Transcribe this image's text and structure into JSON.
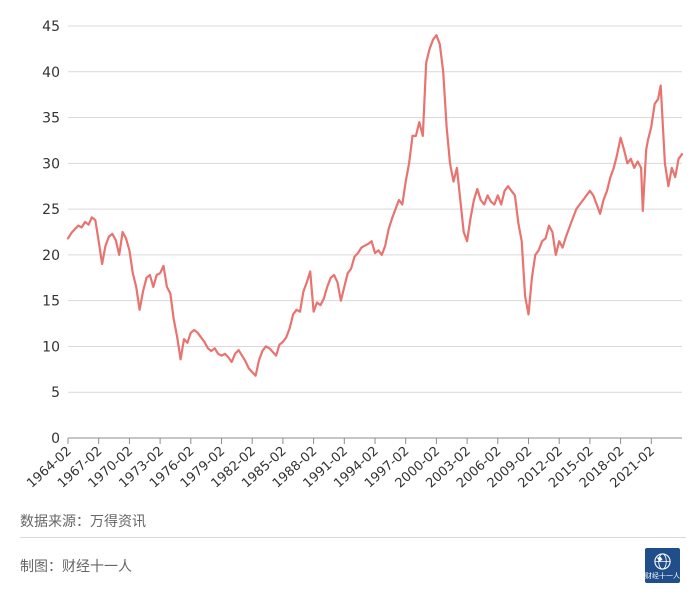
{
  "chart_data": {
    "type": "line",
    "title": "",
    "xlabel": "",
    "ylabel": "",
    "ylim": [
      0,
      45
    ],
    "y_ticks": [
      "0",
      "5",
      "10",
      "15",
      "20",
      "25",
      "30",
      "35",
      "40",
      "45"
    ],
    "x_tick_labels": [
      "1964-02",
      "1967-02",
      "1970-02",
      "1973-02",
      "1976-02",
      "1979-02",
      "1982-02",
      "1985-02",
      "1988-02",
      "1991-02",
      "1994-02",
      "1997-02",
      "2000-02",
      "2003-02",
      "2006-02",
      "2009-02",
      "2012-02",
      "2015-02",
      "2018-02",
      "2021-02"
    ],
    "xlim": [
      "1964-02",
      "2024-02"
    ],
    "grid": true,
    "legend": "none",
    "series": [
      {
        "color": "#e8736f",
        "points": [
          [
            "1964-02",
            21.8
          ],
          [
            "1964-06",
            22.4
          ],
          [
            "1964-10",
            22.8
          ],
          [
            "1965-02",
            23.2
          ],
          [
            "1965-06",
            23.0
          ],
          [
            "1965-10",
            23.6
          ],
          [
            "1966-02",
            23.3
          ],
          [
            "1966-06",
            24.1
          ],
          [
            "1966-10",
            23.8
          ],
          [
            "1967-02",
            21.5
          ],
          [
            "1967-06",
            19.0
          ],
          [
            "1967-10",
            21.0
          ],
          [
            "1968-02",
            22.0
          ],
          [
            "1968-06",
            22.3
          ],
          [
            "1968-10",
            21.6
          ],
          [
            "1969-02",
            20.0
          ],
          [
            "1969-06",
            22.5
          ],
          [
            "1969-10",
            21.8
          ],
          [
            "1970-02",
            20.5
          ],
          [
            "1970-06",
            18.0
          ],
          [
            "1970-10",
            16.5
          ],
          [
            "1971-02",
            14.0
          ],
          [
            "1971-06",
            16.0
          ],
          [
            "1971-10",
            17.5
          ],
          [
            "1972-02",
            17.8
          ],
          [
            "1972-06",
            16.5
          ],
          [
            "1972-10",
            17.8
          ],
          [
            "1973-02",
            18.0
          ],
          [
            "1973-06",
            18.8
          ],
          [
            "1973-10",
            16.5
          ],
          [
            "1974-02",
            15.8
          ],
          [
            "1974-06",
            13.0
          ],
          [
            "1974-10",
            11.0
          ],
          [
            "1975-02",
            8.6
          ],
          [
            "1975-06",
            10.8
          ],
          [
            "1975-10",
            10.4
          ],
          [
            "1976-02",
            11.5
          ],
          [
            "1976-06",
            11.8
          ],
          [
            "1976-10",
            11.5
          ],
          [
            "1977-02",
            11.0
          ],
          [
            "1977-06",
            10.5
          ],
          [
            "1977-10",
            9.8
          ],
          [
            "1978-02",
            9.5
          ],
          [
            "1978-06",
            9.8
          ],
          [
            "1978-10",
            9.2
          ],
          [
            "1979-02",
            9.0
          ],
          [
            "1979-06",
            9.2
          ],
          [
            "1979-10",
            8.8
          ],
          [
            "1980-02",
            8.3
          ],
          [
            "1980-06",
            9.2
          ],
          [
            "1980-10",
            9.6
          ],
          [
            "1981-02",
            9.0
          ],
          [
            "1981-06",
            8.4
          ],
          [
            "1981-10",
            7.6
          ],
          [
            "1982-02",
            7.2
          ],
          [
            "1982-06",
            6.8
          ],
          [
            "1982-10",
            8.5
          ],
          [
            "1983-02",
            9.5
          ],
          [
            "1983-06",
            10.0
          ],
          [
            "1983-10",
            9.8
          ],
          [
            "1984-02",
            9.4
          ],
          [
            "1984-06",
            9.0
          ],
          [
            "1984-10",
            10.2
          ],
          [
            "1985-02",
            10.5
          ],
          [
            "1985-06",
            11.0
          ],
          [
            "1985-10",
            12.0
          ],
          [
            "1986-02",
            13.5
          ],
          [
            "1986-06",
            14.0
          ],
          [
            "1986-10",
            13.8
          ],
          [
            "1987-02",
            16.0
          ],
          [
            "1987-06",
            17.0
          ],
          [
            "1987-10",
            18.2
          ],
          [
            "1988-02",
            13.8
          ],
          [
            "1988-06",
            14.8
          ],
          [
            "1988-10",
            14.5
          ],
          [
            "1989-02",
            15.2
          ],
          [
            "1989-06",
            16.5
          ],
          [
            "1989-10",
            17.5
          ],
          [
            "1990-02",
            17.8
          ],
          [
            "1990-06",
            17.0
          ],
          [
            "1990-10",
            15.0
          ],
          [
            "1991-02",
            16.5
          ],
          [
            "1991-06",
            18.0
          ],
          [
            "1991-10",
            18.5
          ],
          [
            "1992-02",
            19.8
          ],
          [
            "1992-06",
            20.2
          ],
          [
            "1992-10",
            20.8
          ],
          [
            "1993-02",
            21.0
          ],
          [
            "1993-06",
            21.2
          ],
          [
            "1993-10",
            21.5
          ],
          [
            "1994-02",
            20.2
          ],
          [
            "1994-06",
            20.5
          ],
          [
            "1994-10",
            20.0
          ],
          [
            "1995-02",
            21.0
          ],
          [
            "1995-06",
            22.8
          ],
          [
            "1995-10",
            24.0
          ],
          [
            "1996-02",
            25.0
          ],
          [
            "1996-06",
            26.0
          ],
          [
            "1996-10",
            25.5
          ],
          [
            "1997-02",
            28.0
          ],
          [
            "1997-06",
            30.0
          ],
          [
            "1997-10",
            33.0
          ],
          [
            "1998-02",
            33.0
          ],
          [
            "1998-06",
            34.5
          ],
          [
            "1998-10",
            33.0
          ],
          [
            "1999-02",
            41.0
          ],
          [
            "1999-06",
            42.5
          ],
          [
            "1999-10",
            43.5
          ],
          [
            "2000-02",
            44.0
          ],
          [
            "2000-06",
            43.0
          ],
          [
            "2000-10",
            40.0
          ],
          [
            "2001-02",
            34.0
          ],
          [
            "2001-06",
            30.0
          ],
          [
            "2001-10",
            28.0
          ],
          [
            "2002-02",
            29.5
          ],
          [
            "2002-06",
            26.0
          ],
          [
            "2002-10",
            22.5
          ],
          [
            "2003-02",
            21.5
          ],
          [
            "2003-06",
            24.0
          ],
          [
            "2003-10",
            26.0
          ],
          [
            "2004-02",
            27.2
          ],
          [
            "2004-06",
            26.0
          ],
          [
            "2004-10",
            25.5
          ],
          [
            "2005-02",
            26.5
          ],
          [
            "2005-06",
            25.8
          ],
          [
            "2005-10",
            25.5
          ],
          [
            "2006-02",
            26.5
          ],
          [
            "2006-06",
            25.5
          ],
          [
            "2006-10",
            27.0
          ],
          [
            "2007-02",
            27.5
          ],
          [
            "2007-06",
            27.0
          ],
          [
            "2007-10",
            26.5
          ],
          [
            "2008-02",
            23.5
          ],
          [
            "2008-06",
            21.5
          ],
          [
            "2008-10",
            15.5
          ],
          [
            "2009-02",
            13.5
          ],
          [
            "2009-06",
            17.5
          ],
          [
            "2009-10",
            20.0
          ],
          [
            "2010-02",
            20.5
          ],
          [
            "2010-06",
            21.5
          ],
          [
            "2010-10",
            21.8
          ],
          [
            "2011-02",
            23.2
          ],
          [
            "2011-06",
            22.5
          ],
          [
            "2011-10",
            20.0
          ],
          [
            "2012-02",
            21.5
          ],
          [
            "2012-06",
            20.8
          ],
          [
            "2012-10",
            22.0
          ],
          [
            "2013-02",
            23.0
          ],
          [
            "2013-06",
            24.0
          ],
          [
            "2013-10",
            25.0
          ],
          [
            "2014-02",
            25.5
          ],
          [
            "2014-06",
            26.0
          ],
          [
            "2014-10",
            26.5
          ],
          [
            "2015-02",
            27.0
          ],
          [
            "2015-06",
            26.5
          ],
          [
            "2015-10",
            25.5
          ],
          [
            "2016-02",
            24.5
          ],
          [
            "2016-06",
            26.0
          ],
          [
            "2016-10",
            27.0
          ],
          [
            "2017-02",
            28.5
          ],
          [
            "2017-06",
            29.5
          ],
          [
            "2017-10",
            31.0
          ],
          [
            "2018-02",
            32.8
          ],
          [
            "2018-06",
            31.5
          ],
          [
            "2018-10",
            30.0
          ],
          [
            "2019-02",
            30.5
          ],
          [
            "2019-06",
            29.5
          ],
          [
            "2019-10",
            30.2
          ],
          [
            "2020-02",
            29.5
          ],
          [
            "2020-04",
            24.8
          ],
          [
            "2020-08",
            31.5
          ],
          [
            "2020-10",
            32.5
          ],
          [
            "2021-02",
            34.0
          ],
          [
            "2021-06",
            36.5
          ],
          [
            "2021-10",
            37.0
          ],
          [
            "2022-01",
            38.5
          ],
          [
            "2022-06",
            30.0
          ],
          [
            "2022-10",
            27.5
          ],
          [
            "2023-02",
            29.5
          ],
          [
            "2023-06",
            28.5
          ],
          [
            "2023-10",
            30.5
          ],
          [
            "2024-02",
            31.0
          ]
        ]
      }
    ]
  },
  "footer": {
    "source": "数据来源：万得资讯",
    "maker": "制图：财经十一人",
    "logo_text": "财经十一人"
  }
}
